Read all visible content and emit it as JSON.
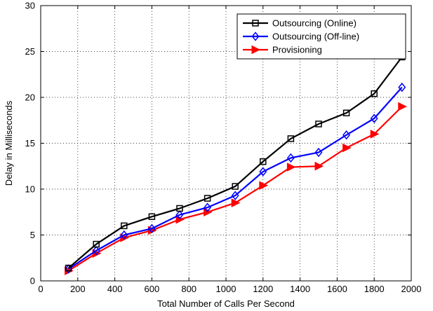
{
  "chart_data": {
    "type": "line",
    "title": "",
    "xlabel": "Total Number of Calls Per Second",
    "ylabel": "Delay in Milliseconds",
    "xlim": [
      0,
      2000
    ],
    "ylim": [
      0,
      30
    ],
    "xticks": [
      0,
      200,
      400,
      600,
      800,
      1000,
      1200,
      1400,
      1600,
      1800,
      2000
    ],
    "yticks": [
      0,
      5,
      10,
      15,
      20,
      25,
      30
    ],
    "grid": true,
    "legend_position": "top-right",
    "x": [
      150,
      300,
      450,
      600,
      750,
      900,
      1050,
      1200,
      1350,
      1500,
      1650,
      1800,
      1950
    ],
    "series": [
      {
        "name": "Outsourcing (Online)",
        "color": "#000000",
        "marker": "square",
        "values": [
          1.4,
          4.0,
          6.0,
          7.0,
          7.9,
          9.0,
          10.3,
          13.0,
          15.5,
          17.1,
          18.3,
          20.4,
          24.4
        ]
      },
      {
        "name": "Outsourcing (Off-line)",
        "color": "#0000ff",
        "marker": "diamond",
        "values": [
          1.3,
          3.3,
          5.0,
          5.7,
          7.2,
          8.0,
          9.3,
          11.9,
          13.4,
          14.0,
          15.9,
          17.7,
          21.1
        ]
      },
      {
        "name": "Provisioning",
        "color": "#ff0000",
        "marker": "triangle-right",
        "values": [
          1.1,
          3.0,
          4.7,
          5.5,
          6.7,
          7.5,
          8.5,
          10.4,
          12.4,
          12.5,
          14.5,
          16.0,
          19.0
        ]
      }
    ]
  }
}
